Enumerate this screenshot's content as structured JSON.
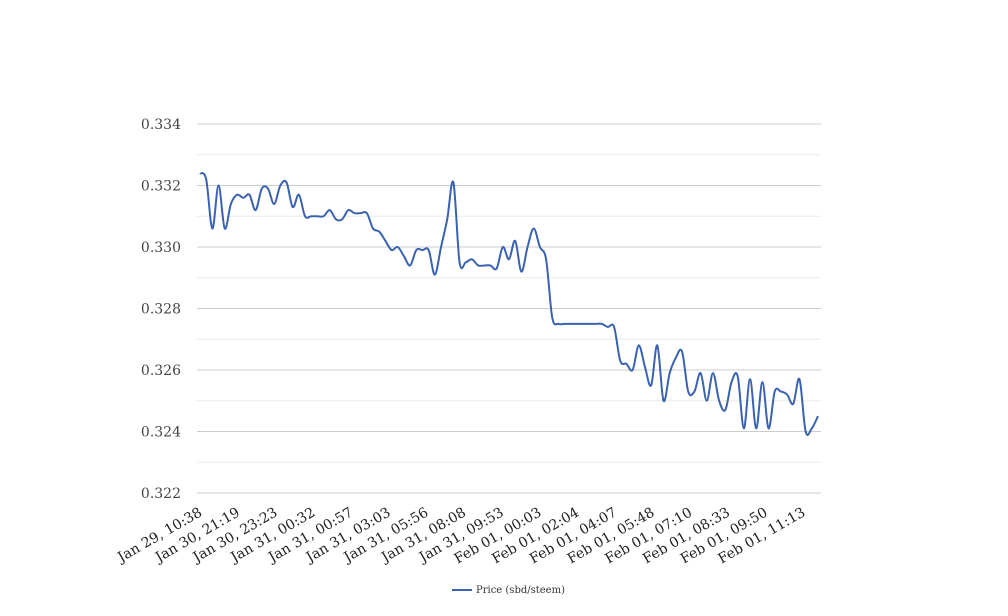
{
  "chart_data": {
    "type": "line",
    "title": "",
    "xlabel": "",
    "ylabel": "",
    "ylim": [
      0.322,
      0.334
    ],
    "yticks": [
      0.322,
      0.324,
      0.326,
      0.328,
      0.33,
      0.332,
      0.334
    ],
    "ytick_labels": [
      "0.322",
      "0.324",
      "0.326",
      "0.328",
      "0.330",
      "0.332",
      "0.334"
    ],
    "minor_grid": true,
    "grid": true,
    "legend_position": "bottom-center",
    "line_color": "#3a62b0",
    "x_tick_labels": [
      "Jan 29, 10:38",
      "Jan 30, 21:19",
      "Jan 30, 23:23",
      "Jan 31, 00:32",
      "Jan 31, 00:57",
      "Jan 31, 03:03",
      "Jan 31, 05:56",
      "Jan 31, 08:08",
      "Jan 31, 09:53",
      "Feb 01, 00:03",
      "Feb 01, 02:04",
      "Feb 01, 04:07",
      "Feb 01, 05:48",
      "Feb 01, 07:10",
      "Feb 01, 08:33",
      "Feb 01, 09:50",
      "Feb 01, 11:13"
    ],
    "series": [
      {
        "name": "Price (sbd/steem)",
        "values": [
          0.3324,
          0.3322,
          0.3306,
          0.332,
          0.3306,
          0.3314,
          0.3317,
          0.3316,
          0.3317,
          0.3312,
          0.3319,
          0.3319,
          0.3314,
          0.332,
          0.3321,
          0.3313,
          0.3317,
          0.331,
          0.331,
          0.331,
          0.331,
          0.3312,
          0.3309,
          0.3309,
          0.3312,
          0.3311,
          0.3311,
          0.3311,
          0.3306,
          0.3305,
          0.3302,
          0.3299,
          0.33,
          0.3297,
          0.3294,
          0.3299,
          0.3299,
          0.3299,
          0.3291,
          0.33,
          0.3309,
          0.3321,
          0.3295,
          0.3295,
          0.3296,
          0.3294,
          0.3294,
          0.3294,
          0.3293,
          0.33,
          0.3296,
          0.3302,
          0.3292,
          0.33,
          0.3306,
          0.33,
          0.3296,
          0.3277,
          0.3275,
          0.3275,
          0.3275,
          0.3275,
          0.3275,
          0.3275,
          0.3275,
          0.3275,
          0.3274,
          0.3274,
          0.3263,
          0.3262,
          0.326,
          0.3268,
          0.3261,
          0.3255,
          0.3268,
          0.325,
          0.3259,
          0.3264,
          0.3266,
          0.3253,
          0.3253,
          0.3259,
          0.325,
          0.3259,
          0.325,
          0.3247,
          0.3256,
          0.3258,
          0.3241,
          0.3257,
          0.3241,
          0.3256,
          0.3241,
          0.3253,
          0.3253,
          0.3252,
          0.3249,
          0.3257,
          0.324,
          0.3241,
          0.3245
        ]
      }
    ]
  }
}
